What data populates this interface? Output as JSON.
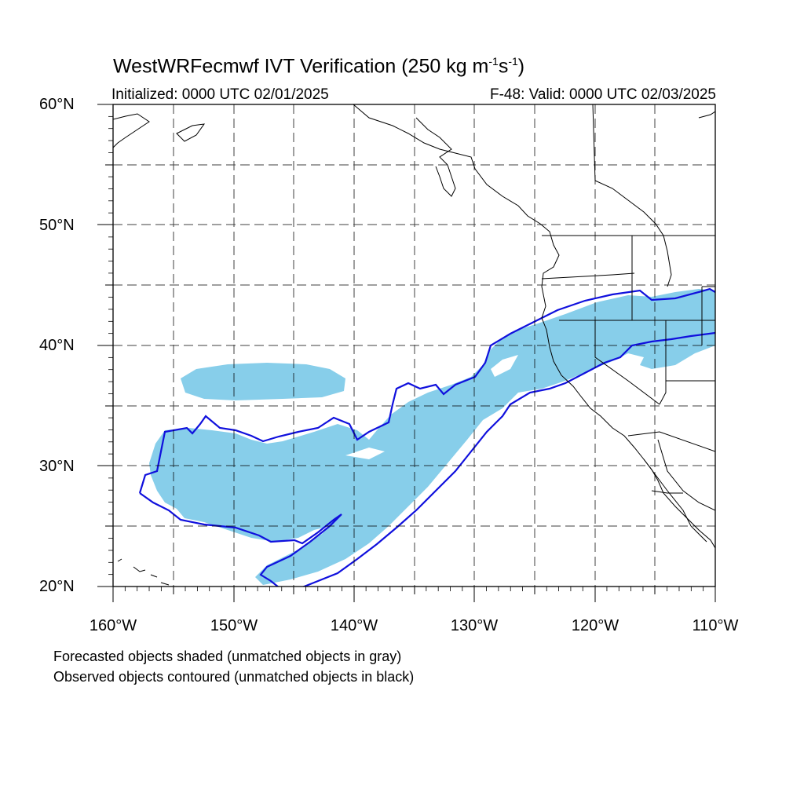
{
  "title": {
    "main": "WestWRFecmwf IVT Verification (250 kg m",
    "sup1": "-1",
    "mid": "s",
    "sup2": "-1",
    "end": ")"
  },
  "subtitle_left": "Initialized: 0000 UTC 02/01/2025",
  "subtitle_right": "F-48: Valid: 0000 UTC 02/03/2025",
  "axes": {
    "lat_labels": [
      "60°N",
      "50°N",
      "40°N",
      "30°N",
      "20°N"
    ],
    "lon_labels": [
      "160°W",
      "150°W",
      "140°W",
      "130°W",
      "120°W",
      "110°W"
    ]
  },
  "notes": [
    "Forecasted objects shaded (unmatched objects in gray)",
    "Observed objects contoured (unmatched objects in black)"
  ],
  "colors": {
    "forecast_fill": "#87ceea",
    "observed_contour": "#1010dd",
    "coastline": "#000000",
    "grid": "#000000"
  }
}
